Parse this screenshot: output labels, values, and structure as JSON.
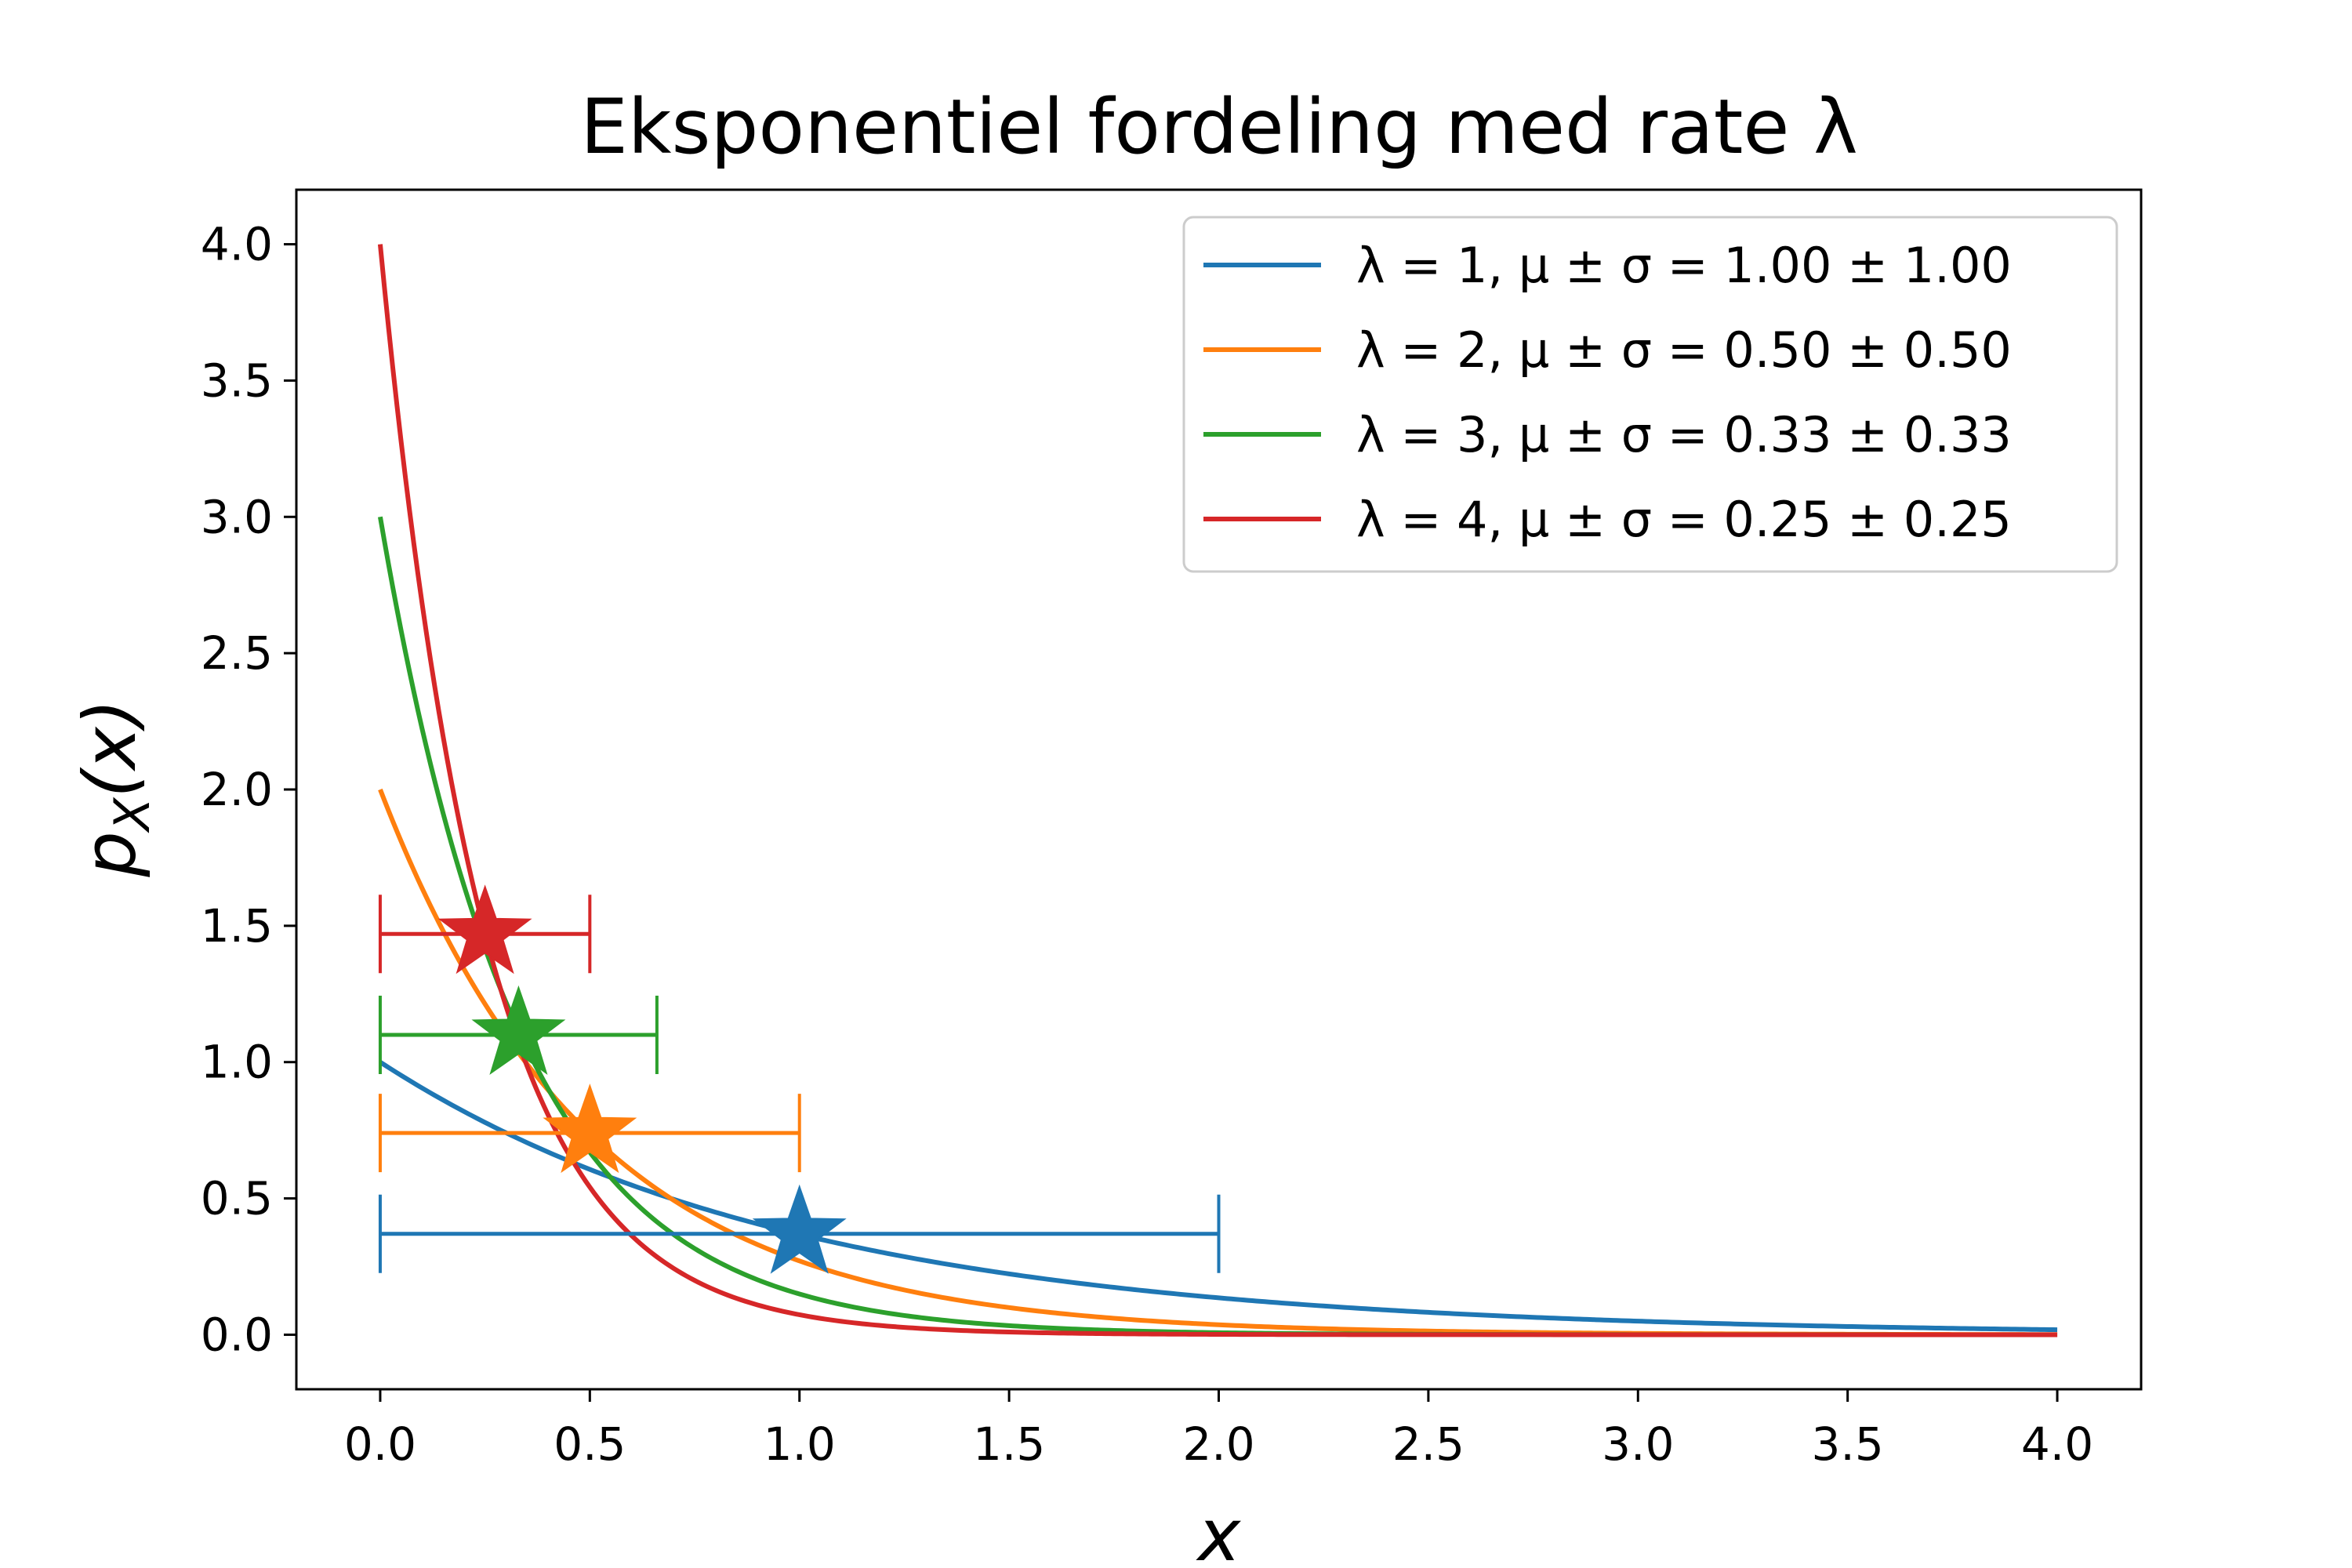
{
  "chart_data": {
    "type": "line",
    "title": "Eksponentiel fordeling med rate λ",
    "xlabel": "x",
    "ylabel": "pX(x)",
    "xlim": [
      -0.2,
      4.2
    ],
    "ylim": [
      -0.2,
      4.2
    ],
    "x_ticks": [
      "0.0",
      "0.5",
      "1.0",
      "1.5",
      "2.0",
      "2.5",
      "3.0",
      "3.5",
      "4.0"
    ],
    "y_ticks": [
      "0.0",
      "0.5",
      "1.0",
      "1.5",
      "2.0",
      "2.5",
      "3.0",
      "3.5",
      "4.0"
    ],
    "grid": false,
    "legend_position": "top-right",
    "x_range": [
      0.0,
      4.0
    ],
    "series": [
      {
        "name": "λ =  1, μ ± σ = 1.00 ± 1.00",
        "rate": 1,
        "mean": 1.0,
        "std": 1.0,
        "marker_y": 0.37,
        "color": "#1f77b4"
      },
      {
        "name": "λ =  2, μ ± σ = 0.50 ± 0.50",
        "rate": 2,
        "mean": 0.5,
        "std": 0.5,
        "marker_y": 0.74,
        "color": "#ff7f0e"
      },
      {
        "name": "λ =  3, μ ± σ = 0.33 ± 0.33",
        "rate": 3,
        "mean": 0.33,
        "std": 0.33,
        "marker_y": 1.1,
        "color": "#2ca02c"
      },
      {
        "name": "λ =  4, μ ± σ = 0.25 ± 0.25",
        "rate": 4,
        "mean": 0.25,
        "std": 0.25,
        "marker_y": 1.47,
        "color": "#d62728"
      }
    ]
  }
}
